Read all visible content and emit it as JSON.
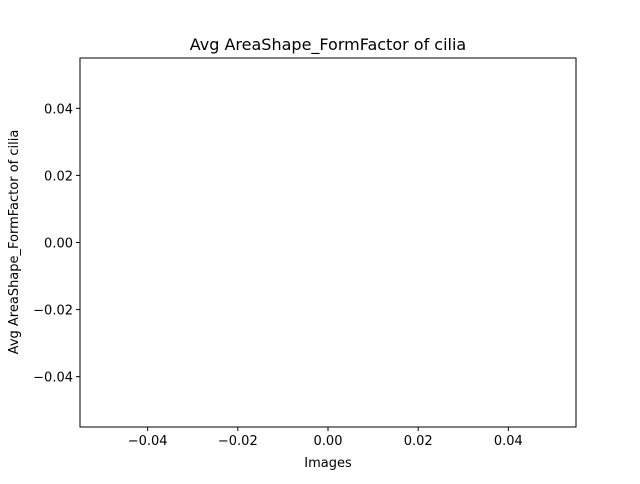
{
  "chart_data": {
    "type": "scatter",
    "title": "Avg AreaShape_FormFactor of cilia",
    "xlabel": "Images",
    "ylabel": "Avg AreaShape_FormFactor of cilia",
    "xlim": [
      -0.055,
      0.055
    ],
    "ylim": [
      -0.055,
      0.055
    ],
    "xticks": [
      -0.04,
      -0.02,
      0.0,
      0.02,
      0.04
    ],
    "xtick_labels": [
      "−0.04",
      "−0.02",
      "0.00",
      "0.02",
      "0.04"
    ],
    "yticks": [
      -0.04,
      -0.02,
      0.0,
      0.02,
      0.04
    ],
    "ytick_labels": [
      "−0.04",
      "−0.02",
      "0.00",
      "0.02",
      "0.04"
    ],
    "grid": false,
    "series": [
      {
        "x": [],
        "y": []
      }
    ]
  }
}
